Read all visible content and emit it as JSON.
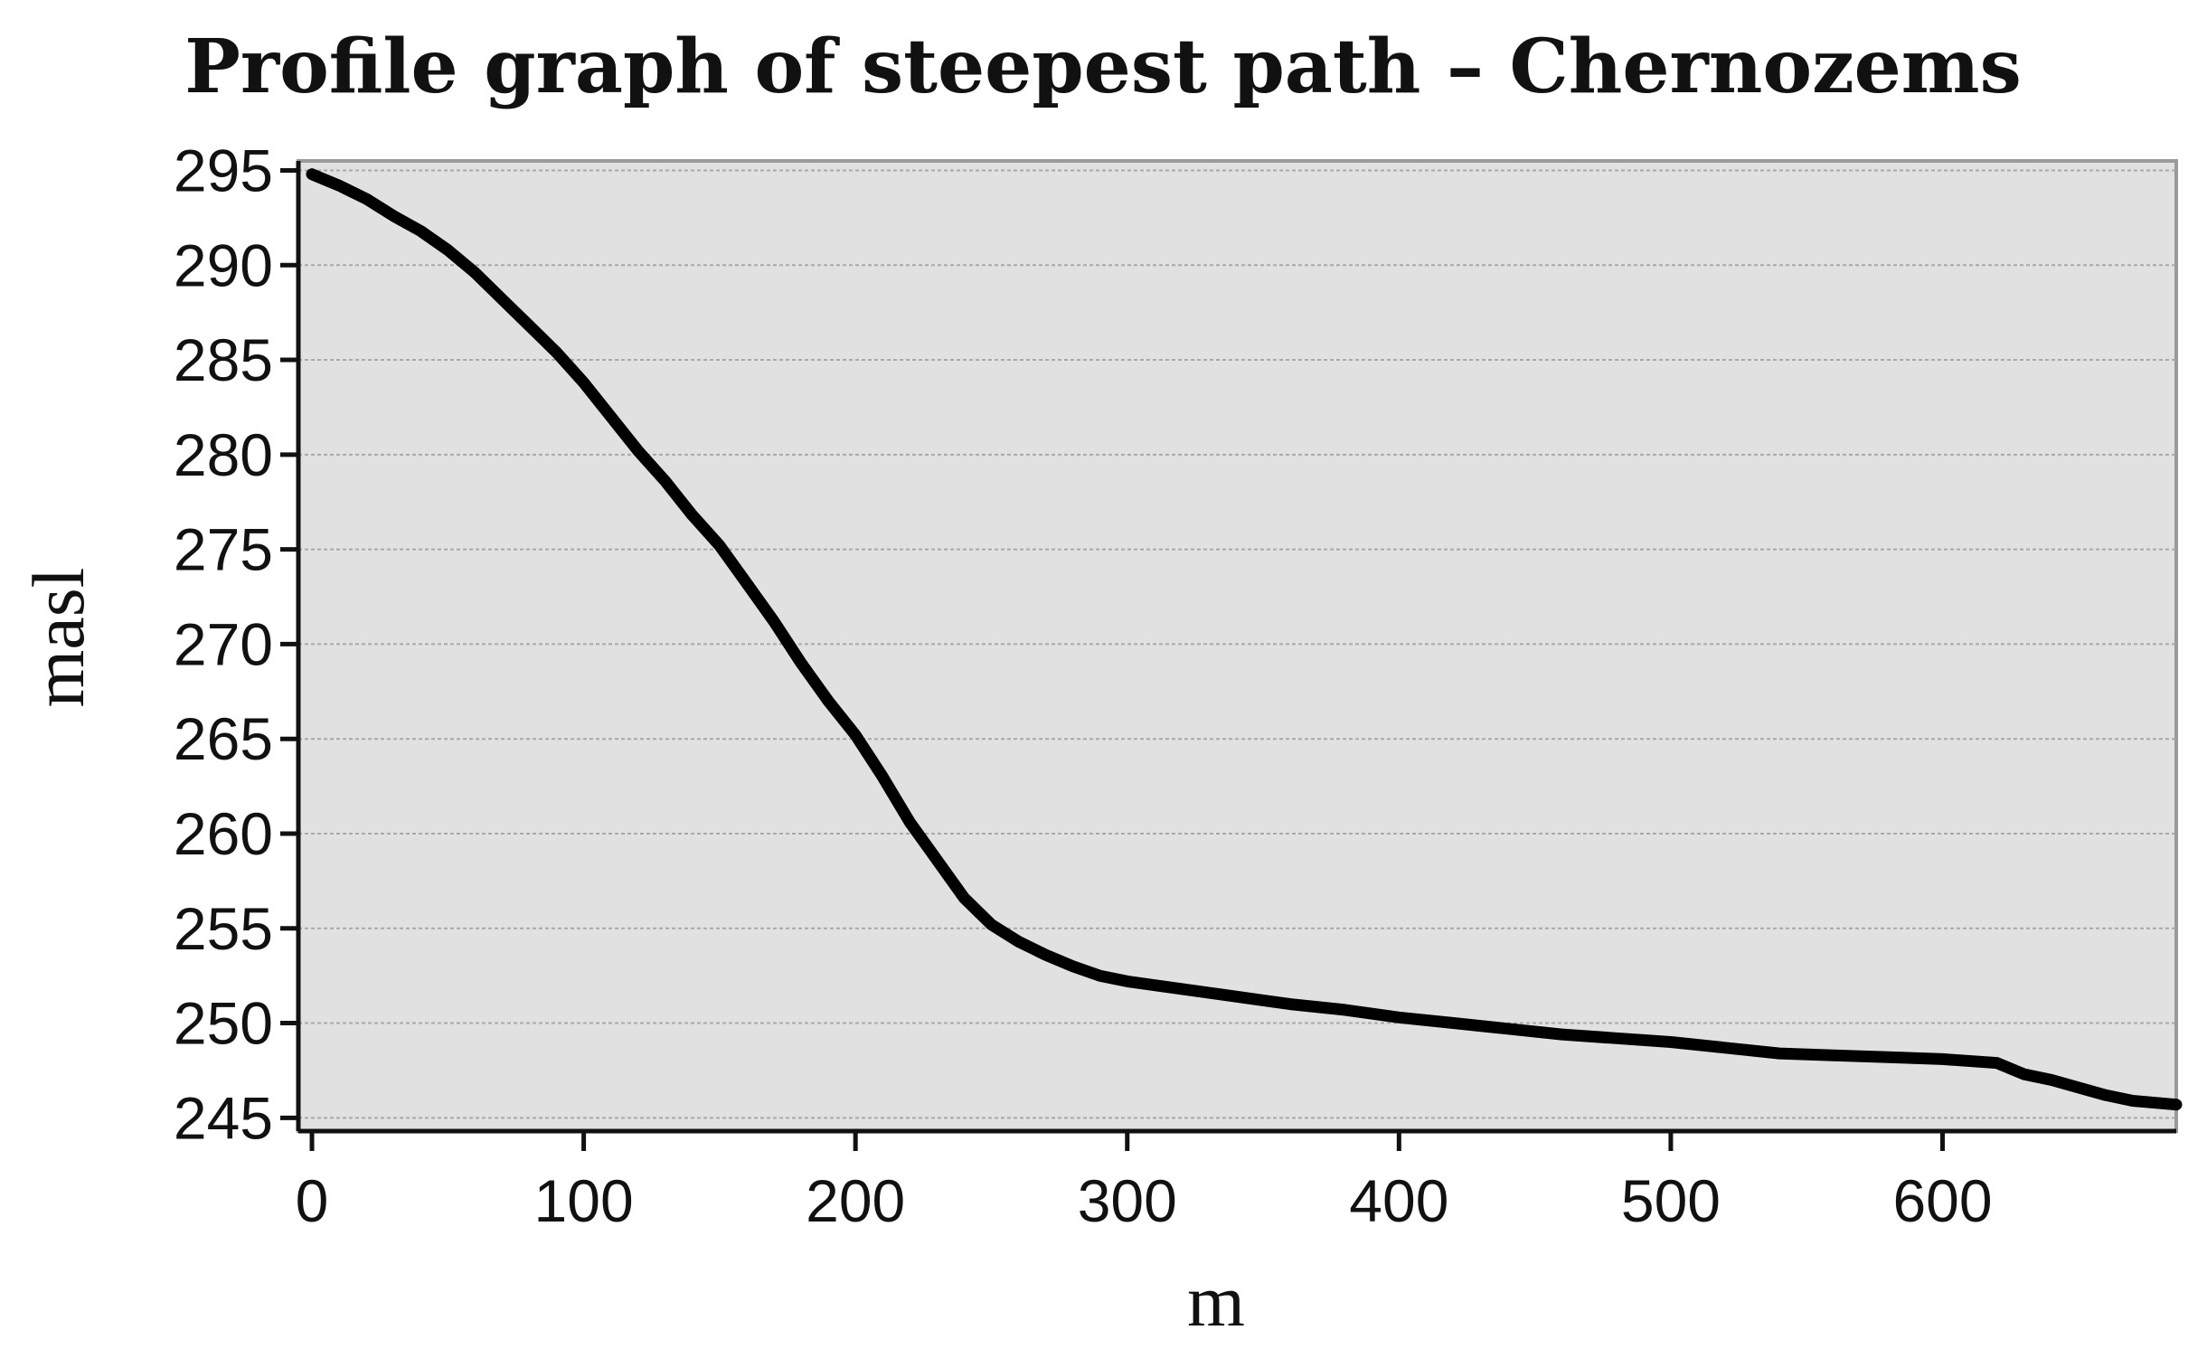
{
  "chart_data": {
    "type": "line",
    "title": "Profile graph of steepest path – Chernozems",
    "xlabel": "m",
    "ylabel": "masl",
    "xlim": [
      -5,
      686
    ],
    "ylim": [
      244.3,
      295.5
    ],
    "x_ticks": [
      0,
      100,
      200,
      300,
      400,
      500,
      600
    ],
    "y_ticks": [
      245,
      250,
      255,
      260,
      265,
      270,
      275,
      280,
      285,
      290,
      295
    ],
    "grid": "horizontal",
    "legend": "none",
    "colors": {
      "line": "#000000",
      "plot_background": "#e1e1e1",
      "grid": "#a9a9a9"
    },
    "series": [
      {
        "x": [
          0,
          10,
          20,
          30,
          40,
          50,
          60,
          70,
          80,
          90,
          100,
          110,
          120,
          130,
          140,
          150,
          160,
          170,
          180,
          190,
          200,
          210,
          220,
          230,
          240,
          250,
          260,
          270,
          280,
          290,
          300,
          320,
          340,
          360,
          380,
          400,
          420,
          440,
          460,
          480,
          500,
          520,
          540,
          560,
          580,
          600,
          620,
          630,
          640,
          660,
          670,
          686
        ],
        "y": [
          294.8,
          294.2,
          293.5,
          292.6,
          291.8,
          290.8,
          289.6,
          288.2,
          286.8,
          285.4,
          283.8,
          282.0,
          280.2,
          278.6,
          276.8,
          275.2,
          273.2,
          271.2,
          269.0,
          267.0,
          265.2,
          263.0,
          260.6,
          258.6,
          256.6,
          255.2,
          254.3,
          253.6,
          253.0,
          252.5,
          252.2,
          251.8,
          251.4,
          251.0,
          250.7,
          250.3,
          250.0,
          249.7,
          249.4,
          249.2,
          249.0,
          248.7,
          248.4,
          248.3,
          248.2,
          248.1,
          247.9,
          247.3,
          247.0,
          246.2,
          245.9,
          245.7
        ]
      }
    ]
  }
}
